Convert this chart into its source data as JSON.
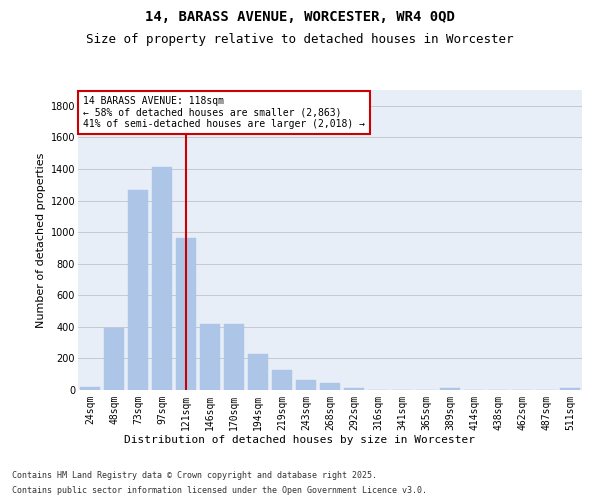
{
  "title": "14, BARASS AVENUE, WORCESTER, WR4 0QD",
  "subtitle": "Size of property relative to detached houses in Worcester",
  "xlabel": "Distribution of detached houses by size in Worcester",
  "ylabel": "Number of detached properties",
  "categories": [
    "24sqm",
    "48sqm",
    "73sqm",
    "97sqm",
    "121sqm",
    "146sqm",
    "170sqm",
    "194sqm",
    "219sqm",
    "243sqm",
    "268sqm",
    "292sqm",
    "316sqm",
    "341sqm",
    "365sqm",
    "389sqm",
    "414sqm",
    "438sqm",
    "462sqm",
    "487sqm",
    "511sqm"
  ],
  "values": [
    20,
    395,
    1265,
    1410,
    960,
    415,
    415,
    230,
    125,
    65,
    45,
    12,
    0,
    0,
    0,
    12,
    0,
    0,
    0,
    0,
    12
  ],
  "bar_color": "#adc6e8",
  "bar_edge_color": "#adc6e8",
  "vline_x": 4,
  "annotation_text": "14 BARASS AVENUE: 118sqm\n← 58% of detached houses are smaller (2,863)\n41% of semi-detached houses are larger (2,018) →",
  "annotation_box_facecolor": "#ffffff",
  "annotation_box_edgecolor": "#cc0000",
  "vline_color": "#cc0000",
  "ylim": [
    0,
    1900
  ],
  "yticks": [
    0,
    200,
    400,
    600,
    800,
    1000,
    1200,
    1400,
    1600,
    1800
  ],
  "grid_color": "#c8c8c8",
  "background_color": "#e8eef8",
  "footer_line1": "Contains HM Land Registry data © Crown copyright and database right 2025.",
  "footer_line2": "Contains public sector information licensed under the Open Government Licence v3.0.",
  "title_fontsize": 10,
  "subtitle_fontsize": 9,
  "axis_label_fontsize": 8,
  "tick_fontsize": 7,
  "footer_fontsize": 6,
  "annotation_fontsize": 7
}
